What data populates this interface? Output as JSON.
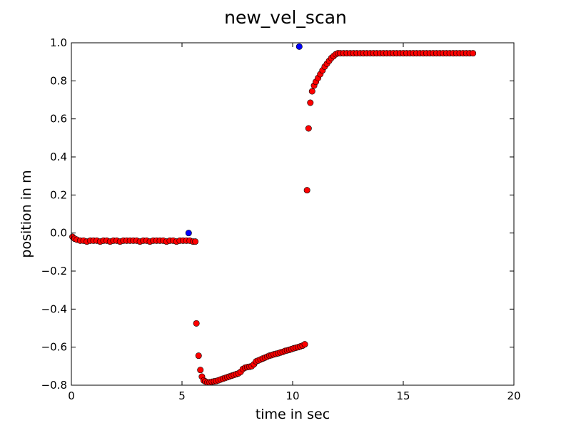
{
  "chart_data": {
    "type": "scatter",
    "title": "new_vel_scan",
    "xlabel": "time in sec",
    "ylabel": "position in m",
    "xlim": [
      0,
      20
    ],
    "ylim": [
      -0.8,
      1.0
    ],
    "xticks": [
      0,
      5,
      10,
      15,
      20
    ],
    "yticks": [
      -0.8,
      -0.6,
      -0.4,
      -0.2,
      0.0,
      0.2,
      0.4,
      0.6,
      0.8,
      1.0
    ],
    "xtick_labels": [
      "0",
      "5",
      "10",
      "15",
      "20"
    ],
    "ytick_labels": [
      "−0.8",
      "−0.6",
      "−0.4",
      "−0.2",
      "0.0",
      "0.2",
      "0.4",
      "0.6",
      "0.8",
      "1.0"
    ],
    "grid": false,
    "legend": "none",
    "series": [
      {
        "color": "#ff0000",
        "points": [
          [
            0.05,
            -0.02
          ],
          [
            0.15,
            -0.03
          ],
          [
            0.25,
            -0.035
          ],
          [
            0.4,
            -0.04
          ],
          [
            0.55,
            -0.04
          ],
          [
            0.7,
            -0.045
          ],
          [
            0.85,
            -0.04
          ],
          [
            1.0,
            -0.04
          ],
          [
            1.15,
            -0.04
          ],
          [
            1.3,
            -0.045
          ],
          [
            1.45,
            -0.04
          ],
          [
            1.6,
            -0.04
          ],
          [
            1.75,
            -0.045
          ],
          [
            1.9,
            -0.04
          ],
          [
            2.05,
            -0.04
          ],
          [
            2.2,
            -0.045
          ],
          [
            2.35,
            -0.04
          ],
          [
            2.5,
            -0.04
          ],
          [
            2.65,
            -0.04
          ],
          [
            2.8,
            -0.04
          ],
          [
            2.95,
            -0.04
          ],
          [
            3.1,
            -0.045
          ],
          [
            3.25,
            -0.04
          ],
          [
            3.4,
            -0.04
          ],
          [
            3.55,
            -0.045
          ],
          [
            3.7,
            -0.04
          ],
          [
            3.85,
            -0.04
          ],
          [
            4.0,
            -0.04
          ],
          [
            4.15,
            -0.04
          ],
          [
            4.3,
            -0.045
          ],
          [
            4.45,
            -0.04
          ],
          [
            4.6,
            -0.04
          ],
          [
            4.75,
            -0.045
          ],
          [
            4.9,
            -0.04
          ],
          [
            5.05,
            -0.04
          ],
          [
            5.2,
            -0.04
          ],
          [
            5.35,
            -0.04
          ],
          [
            5.5,
            -0.045
          ],
          [
            5.6,
            -0.045
          ],
          [
            5.65,
            -0.475
          ],
          [
            5.75,
            -0.645
          ],
          [
            5.83,
            -0.72
          ],
          [
            5.9,
            -0.755
          ],
          [
            5.98,
            -0.775
          ],
          [
            6.05,
            -0.78
          ],
          [
            6.15,
            -0.785
          ],
          [
            6.25,
            -0.785
          ],
          [
            6.35,
            -0.782
          ],
          [
            6.45,
            -0.78
          ],
          [
            6.55,
            -0.778
          ],
          [
            6.65,
            -0.774
          ],
          [
            6.75,
            -0.77
          ],
          [
            6.85,
            -0.766
          ],
          [
            6.95,
            -0.762
          ],
          [
            7.05,
            -0.758
          ],
          [
            7.15,
            -0.754
          ],
          [
            7.25,
            -0.75
          ],
          [
            7.35,
            -0.746
          ],
          [
            7.45,
            -0.742
          ],
          [
            7.55,
            -0.738
          ],
          [
            7.65,
            -0.73
          ],
          [
            7.75,
            -0.715
          ],
          [
            7.85,
            -0.708
          ],
          [
            7.95,
            -0.705
          ],
          [
            8.05,
            -0.703
          ],
          [
            8.15,
            -0.7
          ],
          [
            8.25,
            -0.69
          ],
          [
            8.35,
            -0.675
          ],
          [
            8.45,
            -0.67
          ],
          [
            8.55,
            -0.665
          ],
          [
            8.65,
            -0.66
          ],
          [
            8.75,
            -0.655
          ],
          [
            8.85,
            -0.65
          ],
          [
            8.95,
            -0.645
          ],
          [
            9.05,
            -0.642
          ],
          [
            9.15,
            -0.638
          ],
          [
            9.25,
            -0.635
          ],
          [
            9.35,
            -0.632
          ],
          [
            9.45,
            -0.628
          ],
          [
            9.55,
            -0.625
          ],
          [
            9.65,
            -0.62
          ],
          [
            9.75,
            -0.617
          ],
          [
            9.85,
            -0.614
          ],
          [
            9.95,
            -0.61
          ],
          [
            10.05,
            -0.606
          ],
          [
            10.15,
            -0.603
          ],
          [
            10.25,
            -0.6
          ],
          [
            10.35,
            -0.596
          ],
          [
            10.45,
            -0.592
          ],
          [
            10.55,
            -0.585
          ],
          [
            10.65,
            0.225
          ],
          [
            10.72,
            0.55
          ],
          [
            10.8,
            0.685
          ],
          [
            10.88,
            0.745
          ],
          [
            10.97,
            0.775
          ],
          [
            11.05,
            0.795
          ],
          [
            11.15,
            0.815
          ],
          [
            11.25,
            0.835
          ],
          [
            11.35,
            0.855
          ],
          [
            11.45,
            0.875
          ],
          [
            11.55,
            0.89
          ],
          [
            11.65,
            0.905
          ],
          [
            11.75,
            0.92
          ],
          [
            11.85,
            0.93
          ],
          [
            11.95,
            0.94
          ],
          [
            12.05,
            0.945
          ],
          [
            12.15,
            0.945
          ],
          [
            12.3,
            0.945
          ],
          [
            12.45,
            0.945
          ],
          [
            12.6,
            0.945
          ],
          [
            12.75,
            0.945
          ],
          [
            12.9,
            0.945
          ],
          [
            13.05,
            0.945
          ],
          [
            13.2,
            0.945
          ],
          [
            13.35,
            0.945
          ],
          [
            13.5,
            0.945
          ],
          [
            13.65,
            0.945
          ],
          [
            13.8,
            0.945
          ],
          [
            13.95,
            0.945
          ],
          [
            14.1,
            0.945
          ],
          [
            14.25,
            0.945
          ],
          [
            14.4,
            0.945
          ],
          [
            14.55,
            0.945
          ],
          [
            14.7,
            0.945
          ],
          [
            14.85,
            0.945
          ],
          [
            15.0,
            0.945
          ],
          [
            15.15,
            0.945
          ],
          [
            15.3,
            0.945
          ],
          [
            15.45,
            0.945
          ],
          [
            15.6,
            0.945
          ],
          [
            15.75,
            0.945
          ],
          [
            15.9,
            0.945
          ],
          [
            16.05,
            0.945
          ],
          [
            16.2,
            0.945
          ],
          [
            16.35,
            0.945
          ],
          [
            16.5,
            0.945
          ],
          [
            16.65,
            0.945
          ],
          [
            16.8,
            0.945
          ],
          [
            16.95,
            0.945
          ],
          [
            17.1,
            0.945
          ],
          [
            17.25,
            0.945
          ],
          [
            17.4,
            0.945
          ],
          [
            17.55,
            0.945
          ],
          [
            17.7,
            0.945
          ],
          [
            17.85,
            0.945
          ],
          [
            18.0,
            0.945
          ],
          [
            18.15,
            0.945
          ]
        ]
      },
      {
        "color": "#0000ff",
        "points": [
          [
            5.3,
            0.0
          ],
          [
            10.3,
            0.98
          ]
        ]
      }
    ]
  }
}
